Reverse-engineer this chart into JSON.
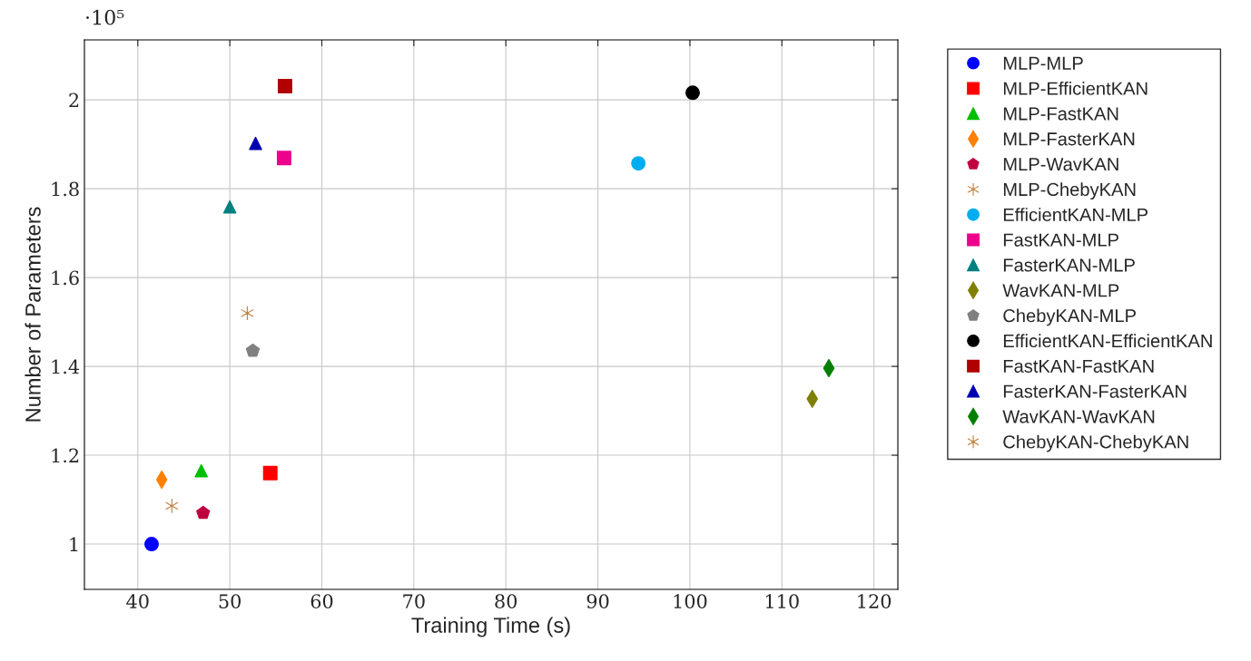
{
  "chart_data": {
    "type": "scatter",
    "xlabel": "Training Time (s)",
    "ylabel": "Number of Parameters",
    "annotations": [
      "·10⁵"
    ],
    "xlim": [
      34.2,
      122.6
    ],
    "xticks": [
      40,
      50,
      60,
      70,
      80,
      90,
      100,
      110,
      120
    ],
    "ylim": [
      0.898,
      2.135
    ],
    "yticks": [
      1,
      1.2,
      1.4,
      1.6,
      1.8,
      2
    ],
    "grid": true,
    "legend": "right",
    "series": [
      {
        "name": "MLP-MLP",
        "color": "#0000ff",
        "marker": "circle",
        "x": [
          41.5
        ],
        "values": [
          1.0
        ]
      },
      {
        "name": "MLP-EfficientKAN",
        "color": "#ff0000",
        "marker": "square",
        "x": [
          54.4
        ],
        "values": [
          1.16
        ]
      },
      {
        "name": "MLP-FastKAN",
        "color": "#00bf00",
        "marker": "triangle",
        "x": [
          46.9
        ],
        "values": [
          1.165
        ]
      },
      {
        "name": "MLP-FasterKAN",
        "color": "#ff8000",
        "marker": "diamond",
        "x": [
          42.6
        ],
        "values": [
          1.145
        ]
      },
      {
        "name": "MLP-WavKAN",
        "color": "#bf0040",
        "x": [
          47.1
        ],
        "values": [
          1.07
        ]
      },
      {
        "name": "MLP-ChebyKAN",
        "color": "#bf8040",
        "marker": "cross",
        "x": [
          43.7
        ],
        "values": [
          1.086
        ]
      },
      {
        "name": "EfficientKAN-MLP",
        "color": "#00aeef",
        "marker": "circle",
        "x": [
          94.4
        ],
        "values": [
          1.857
        ]
      },
      {
        "name": "FastKAN-MLP",
        "color": "#ec008c",
        "marker": "square",
        "x": [
          55.9
        ],
        "values": [
          1.869
        ]
      },
      {
        "name": "FasterKAN-MLP",
        "color": "#008080",
        "marker": "triangle",
        "x": [
          50.0
        ],
        "values": [
          1.759
        ]
      },
      {
        "name": "WavKAN-MLP",
        "color": "#808000",
        "marker": "diamond",
        "x": [
          113.3
        ],
        "values": [
          1.327
        ]
      },
      {
        "name": "ChebyKAN-MLP",
        "color": "#808080",
        "x": [
          52.5
        ],
        "values": [
          1.435
        ]
      },
      {
        "name": "EfficientKAN-EfficientKAN",
        "color": "#000000",
        "marker": "circle",
        "x": [
          100.3
        ],
        "values": [
          2.016
        ]
      },
      {
        "name": "FastKAN-FastKAN",
        "color": "#b00000",
        "marker": "square",
        "x": [
          56.0
        ],
        "values": [
          2.031
        ]
      },
      {
        "name": "FasterKAN-FasterKAN",
        "color": "#0000b0",
        "marker": "triangle",
        "x": [
          52.8
        ],
        "values": [
          1.902
        ]
      },
      {
        "name": "WavKAN-WavKAN",
        "color": "#008000",
        "marker": "diamond",
        "x": [
          115.1
        ],
        "values": [
          1.396
        ]
      },
      {
        "name": "ChebyKAN-ChebyKAN",
        "color": "#bf8040",
        "marker": "cross",
        "x": [
          51.9
        ],
        "values": [
          1.52
        ]
      }
    ]
  }
}
